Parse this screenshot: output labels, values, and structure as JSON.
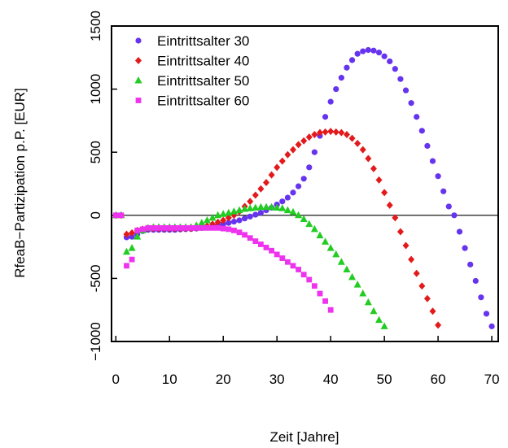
{
  "chart_data": {
    "type": "scatter",
    "xlabel": "Zeit [Jahre]",
    "ylabel": "RfeaB−Partizipation p.P. [EUR]",
    "xlim": [
      -0.8,
      71.2
    ],
    "xticks": [
      0,
      10,
      20,
      30,
      40,
      50,
      60,
      70
    ],
    "ylim": [
      -1000,
      1500
    ],
    "yticks": [
      {
        "value": -1000,
        "label": "−1000"
      },
      -500,
      0,
      500,
      1000,
      1500
    ],
    "hline": 0,
    "legend": "upper left",
    "series": [
      {
        "name": "Eintrittsalter 30",
        "color": "#6633ee",
        "marker": "circle",
        "x": [
          0,
          1,
          2,
          3,
          4,
          5,
          6,
          7,
          8,
          9,
          10,
          11,
          12,
          13,
          14,
          15,
          16,
          17,
          18,
          19,
          20,
          21,
          22,
          23,
          24,
          25,
          26,
          27,
          28,
          29,
          30,
          31,
          32,
          33,
          34,
          35,
          36,
          37,
          38,
          39,
          40,
          41,
          42,
          43,
          44,
          45,
          46,
          47,
          48,
          49,
          50,
          51,
          52,
          53,
          54,
          55,
          56,
          57,
          58,
          59,
          60,
          61,
          62,
          63,
          64,
          65,
          66,
          67,
          68,
          69,
          70
        ],
        "values": [
          0,
          0,
          -175,
          -170,
          -150,
          -125,
          -115,
          -115,
          -115,
          -115,
          -115,
          -115,
          -112,
          -110,
          -108,
          -105,
          -100,
          -95,
          -90,
          -80,
          -70,
          -60,
          -50,
          -40,
          -25,
          -10,
          5,
          20,
          40,
          60,
          85,
          110,
          140,
          180,
          230,
          290,
          380,
          500,
          630,
          780,
          900,
          1000,
          1090,
          1170,
          1230,
          1280,
          1300,
          1310,
          1305,
          1290,
          1260,
          1220,
          1160,
          1080,
          990,
          890,
          780,
          670,
          550,
          430,
          310,
          190,
          70,
          0,
          -130,
          -260,
          -390,
          -520,
          -650,
          -780,
          -880
        ]
      },
      {
        "name": "Eintrittsalter 40",
        "color": "#e31a1c",
        "marker": "diamond",
        "x": [
          0,
          1,
          2,
          3,
          4,
          5,
          6,
          7,
          8,
          9,
          10,
          11,
          12,
          13,
          14,
          15,
          16,
          17,
          18,
          19,
          20,
          21,
          22,
          23,
          24,
          25,
          26,
          27,
          28,
          29,
          30,
          31,
          32,
          33,
          34,
          35,
          36,
          37,
          38,
          39,
          40,
          41,
          42,
          43,
          44,
          45,
          46,
          47,
          48,
          49,
          50,
          51,
          52,
          53,
          54,
          55,
          56,
          57,
          58,
          59,
          60
        ],
        "values": [
          0,
          0,
          -150,
          -140,
          -120,
          -110,
          -105,
          -105,
          -105,
          -105,
          -105,
          -105,
          -105,
          -105,
          -105,
          -100,
          -95,
          -85,
          -70,
          -55,
          -40,
          -20,
          0,
          30,
          70,
          110,
          160,
          210,
          260,
          320,
          380,
          430,
          480,
          520,
          560,
          590,
          620,
          640,
          655,
          660,
          665,
          660,
          655,
          640,
          610,
          570,
          520,
          450,
          370,
          280,
          180,
          80,
          -20,
          -130,
          -240,
          -350,
          -460,
          -560,
          -660,
          -760,
          -870
        ]
      },
      {
        "name": "Eintrittsalter 50",
        "color": "#22cc22",
        "marker": "triangle",
        "x": [
          0,
          1,
          2,
          3,
          4,
          5,
          6,
          7,
          8,
          9,
          10,
          11,
          12,
          13,
          14,
          15,
          16,
          17,
          18,
          19,
          20,
          21,
          22,
          23,
          24,
          25,
          26,
          27,
          28,
          29,
          30,
          31,
          32,
          33,
          34,
          35,
          36,
          37,
          38,
          39,
          40,
          41,
          42,
          43,
          44,
          45,
          46,
          47,
          48,
          49,
          50
        ],
        "values": [
          0,
          0,
          -290,
          -260,
          -170,
          -120,
          -100,
          -95,
          -95,
          -95,
          -95,
          -95,
          -95,
          -95,
          -95,
          -80,
          -60,
          -40,
          -20,
          0,
          10,
          20,
          30,
          40,
          50,
          55,
          60,
          65,
          65,
          65,
          60,
          55,
          40,
          25,
          0,
          -30,
          -70,
          -110,
          -160,
          -210,
          -260,
          -310,
          -370,
          -430,
          -490,
          -550,
          -620,
          -690,
          -760,
          -830,
          -880
        ]
      },
      {
        "name": "Eintrittsalter 60",
        "color": "#ee33ee",
        "marker": "square",
        "x": [
          0,
          1,
          2,
          3,
          4,
          5,
          6,
          7,
          8,
          9,
          10,
          11,
          12,
          13,
          14,
          15,
          16,
          17,
          18,
          19,
          20,
          21,
          22,
          23,
          24,
          25,
          26,
          27,
          28,
          29,
          30,
          31,
          32,
          33,
          34,
          35,
          36,
          37,
          38,
          39,
          40
        ],
        "values": [
          0,
          0,
          -400,
          -350,
          -120,
          -110,
          -100,
          -100,
          -100,
          -100,
          -100,
          -100,
          -100,
          -100,
          -100,
          -100,
          -100,
          -100,
          -100,
          -100,
          -105,
          -110,
          -120,
          -135,
          -155,
          -180,
          -205,
          -230,
          -255,
          -280,
          -310,
          -340,
          -370,
          -400,
          -430,
          -470,
          -510,
          -560,
          -620,
          -680,
          -750
        ]
      }
    ]
  }
}
